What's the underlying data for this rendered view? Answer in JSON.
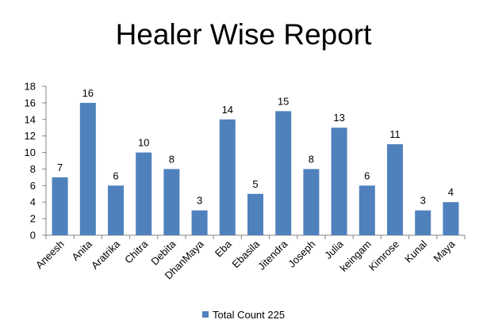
{
  "chart_data": {
    "type": "bar",
    "title": "Healer Wise Report",
    "xlabel": "",
    "ylabel": "",
    "ylim": [
      0,
      18
    ],
    "yticks": [
      0,
      2,
      4,
      6,
      8,
      10,
      12,
      14,
      16,
      18
    ],
    "grid": false,
    "legend_position": "bottom",
    "categories": [
      "Aneesh",
      "Anita",
      "Aratrika",
      "Chitra",
      "Debita",
      "DhanMaya",
      "Eba",
      "Ebasila",
      "Jitendra",
      "Joseph",
      "Julia",
      "keingam",
      "Kimrose",
      "Kunal",
      "Maya"
    ],
    "series": [
      {
        "name": "Total Count 225",
        "color": "#4f81bd",
        "values": [
          7,
          16,
          6,
          10,
          8,
          3,
          14,
          5,
          15,
          8,
          13,
          6,
          11,
          3,
          4
        ]
      }
    ]
  }
}
